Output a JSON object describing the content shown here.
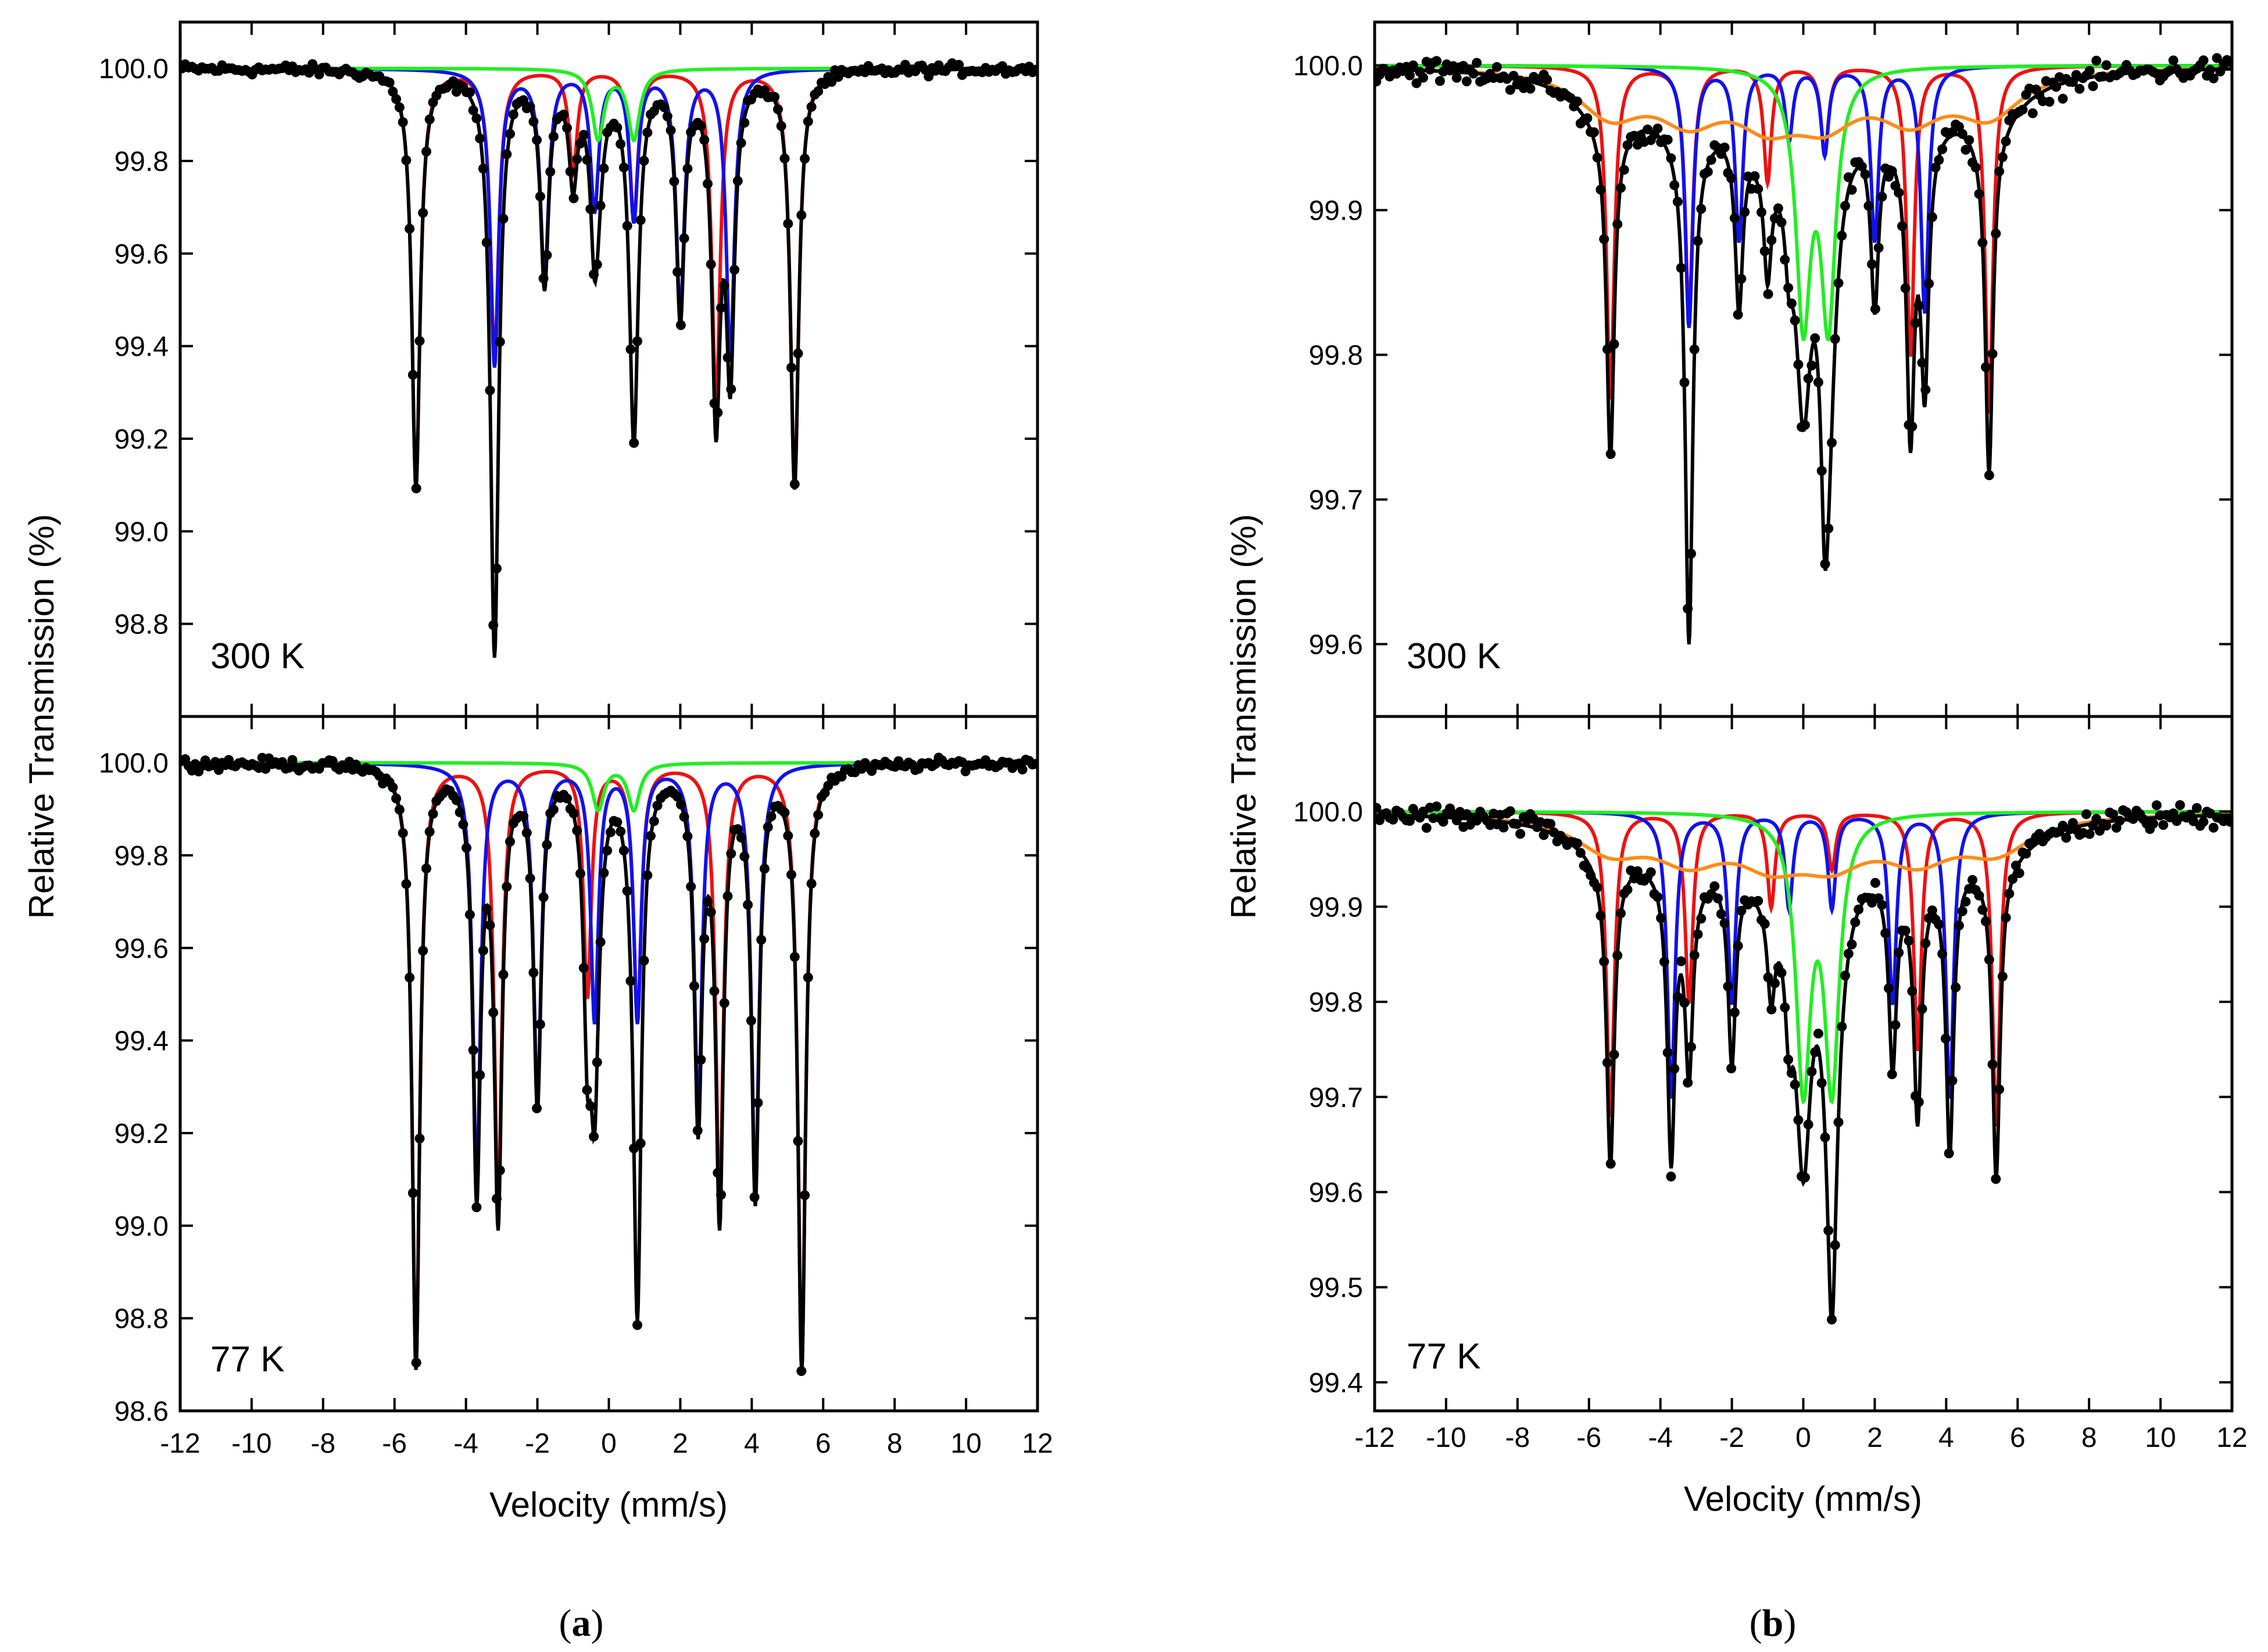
{
  "figure": {
    "caption_a": {
      "open": "(",
      "letter": "a",
      "close": ")"
    },
    "caption_b": {
      "open": "(",
      "letter": "b",
      "close": ")"
    }
  },
  "colors": {
    "data": "#000000",
    "fit": "#000000",
    "sextet_1": "#ee1111",
    "sextet_2": "#1111ee",
    "doublet": "#22ee22",
    "broad": "#ff8c1a"
  },
  "chart_data": [
    {
      "id": "a",
      "type": "scatter",
      "xlabel": "Velocity (mm/s)",
      "ylabel": "Relative Transmission (%)",
      "xlim": [
        -12,
        12
      ],
      "xticks": [
        -12,
        -10,
        -8,
        -6,
        -4,
        -2,
        0,
        2,
        4,
        6,
        8,
        10,
        12
      ],
      "panels": [
        {
          "label": "300 K",
          "ylim": [
            98.6,
            100.1
          ],
          "yticks": [
            98.8,
            99.0,
            99.2,
            99.4,
            99.6,
            99.8,
            100.0
          ],
          "series": [
            {
              "name": "sextet-1",
              "color": "red",
              "width": 0.28,
              "lines": [
                [
                  -5.4,
                  0.9
                ],
                [
                  -3.2,
                  0.62
                ],
                [
                  -1.0,
                  0.22
                ],
                [
                  0.7,
                  0.32
                ],
                [
                  3.0,
                  0.72
                ],
                [
                  5.2,
                  0.9
                ]
              ]
            },
            {
              "name": "sextet-2",
              "color": "blue",
              "width": 0.28,
              "lines": [
                [
                  -3.2,
                  0.64
                ],
                [
                  -1.8,
                  0.45
                ],
                [
                  -0.4,
                  0.3
                ],
                [
                  0.7,
                  0.32
                ],
                [
                  2.0,
                  0.52
                ],
                [
                  3.4,
                  0.62
                ]
              ]
            },
            {
              "name": "doublet",
              "color": "green",
              "width": 0.4,
              "lines": [
                [
                  -0.3,
                  0.15
                ],
                [
                  0.7,
                  0.15
                ]
              ]
            }
          ]
        },
        {
          "label": "77 K",
          "ylim": [
            98.6,
            100.1
          ],
          "yticks": [
            98.6,
            98.8,
            99.0,
            99.2,
            99.4,
            99.6,
            99.8,
            100.0
          ],
          "series": [
            {
              "name": "sextet-1",
              "color": "red",
              "width": 0.26,
              "lines": [
                [
                  -5.4,
                  1.3
                ],
                [
                  -3.1,
                  0.95
                ],
                [
                  -0.6,
                  0.5
                ],
                [
                  0.8,
                  0.55
                ],
                [
                  3.1,
                  0.95
                ],
                [
                  5.4,
                  1.3
                ]
              ]
            },
            {
              "name": "sextet-2",
              "color": "blue",
              "width": 0.26,
              "lines": [
                [
                  -3.7,
                  0.9
                ],
                [
                  -2.0,
                  0.72
                ],
                [
                  -0.4,
                  0.55
                ],
                [
                  0.8,
                  0.55
                ],
                [
                  2.5,
                  0.75
                ],
                [
                  4.1,
                  0.92
                ]
              ]
            },
            {
              "name": "doublet",
              "color": "green",
              "width": 0.4,
              "lines": [
                [
                  -0.3,
                  0.1
                ],
                [
                  0.7,
                  0.1
                ]
              ]
            }
          ]
        }
      ]
    },
    {
      "id": "b",
      "type": "scatter",
      "xlabel": "Velocity (mm/s)",
      "ylabel": "Relative Transmission (%)",
      "xlim": [
        -12,
        12
      ],
      "xticks": [
        -12,
        -10,
        -8,
        -6,
        -4,
        -2,
        0,
        2,
        4,
        6,
        8,
        10,
        12
      ],
      "panels": [
        {
          "label": "300 K",
          "ylim": [
            99.55,
            100.03
          ],
          "yticks": [
            99.6,
            99.7,
            99.8,
            99.9,
            100.0
          ],
          "series": [
            {
              "name": "sextet-1",
              "color": "red",
              "width": 0.26,
              "lines": [
                [
                  -5.4,
                  0.23
                ],
                [
                  -3.2,
                  0.17
                ],
                [
                  -1.0,
                  0.08
                ],
                [
                  0.6,
                  0.06
                ],
                [
                  3.0,
                  0.2
                ],
                [
                  5.2,
                  0.24
                ]
              ]
            },
            {
              "name": "sextet-2",
              "color": "blue",
              "width": 0.26,
              "lines": [
                [
                  -3.2,
                  0.18
                ],
                [
                  -1.8,
                  0.12
                ],
                [
                  -0.4,
                  0.05
                ],
                [
                  0.6,
                  0.06
                ],
                [
                  2.0,
                  0.12
                ],
                [
                  3.4,
                  0.17
                ]
              ]
            },
            {
              "name": "doublet",
              "color": "green",
              "width": 0.5,
              "lines": [
                [
                  0.0,
                  0.17
                ],
                [
                  0.7,
                  0.17
                ]
              ]
            },
            {
              "name": "broad",
              "color": "orange",
              "width": 2.2,
              "lines": [
                [
                  -5.4,
                  0.03
                ],
                [
                  -3.2,
                  0.03
                ],
                [
                  -1.0,
                  0.03
                ],
                [
                  0.6,
                  0.03
                ],
                [
                  3.0,
                  0.03
                ],
                [
                  5.2,
                  0.03
                ]
              ]
            }
          ]
        },
        {
          "label": "77 K",
          "ylim": [
            99.37,
            100.1
          ],
          "yticks": [
            99.4,
            99.5,
            99.6,
            99.7,
            99.8,
            99.9,
            100.0
          ],
          "series": [
            {
              "name": "sextet-1",
              "color": "red",
              "width": 0.26,
              "lines": [
                [
                  -5.4,
                  0.32
                ],
                [
                  -3.2,
                  0.2
                ],
                [
                  -0.9,
                  0.1
                ],
                [
                  0.8,
                  0.06
                ],
                [
                  3.2,
                  0.25
                ],
                [
                  5.4,
                  0.33
                ]
              ]
            },
            {
              "name": "sextet-2",
              "color": "blue",
              "width": 0.26,
              "lines": [
                [
                  -3.7,
                  0.3
                ],
                [
                  -2.0,
                  0.2
                ],
                [
                  -0.4,
                  0.1
                ],
                [
                  0.8,
                  0.1
                ],
                [
                  2.5,
                  0.2
                ],
                [
                  4.1,
                  0.3
                ]
              ]
            },
            {
              "name": "doublet",
              "color": "green",
              "width": 0.5,
              "lines": [
                [
                  0.0,
                  0.28
                ],
                [
                  0.8,
                  0.28
                ]
              ]
            },
            {
              "name": "broad",
              "color": "orange",
              "width": 2.4,
              "lines": [
                [
                  -5.4,
                  0.035
                ],
                [
                  -3.2,
                  0.04
                ],
                [
                  -0.9,
                  0.04
                ],
                [
                  0.8,
                  0.04
                ],
                [
                  3.2,
                  0.04
                ],
                [
                  5.4,
                  0.035
                ]
              ]
            }
          ]
        }
      ]
    }
  ]
}
